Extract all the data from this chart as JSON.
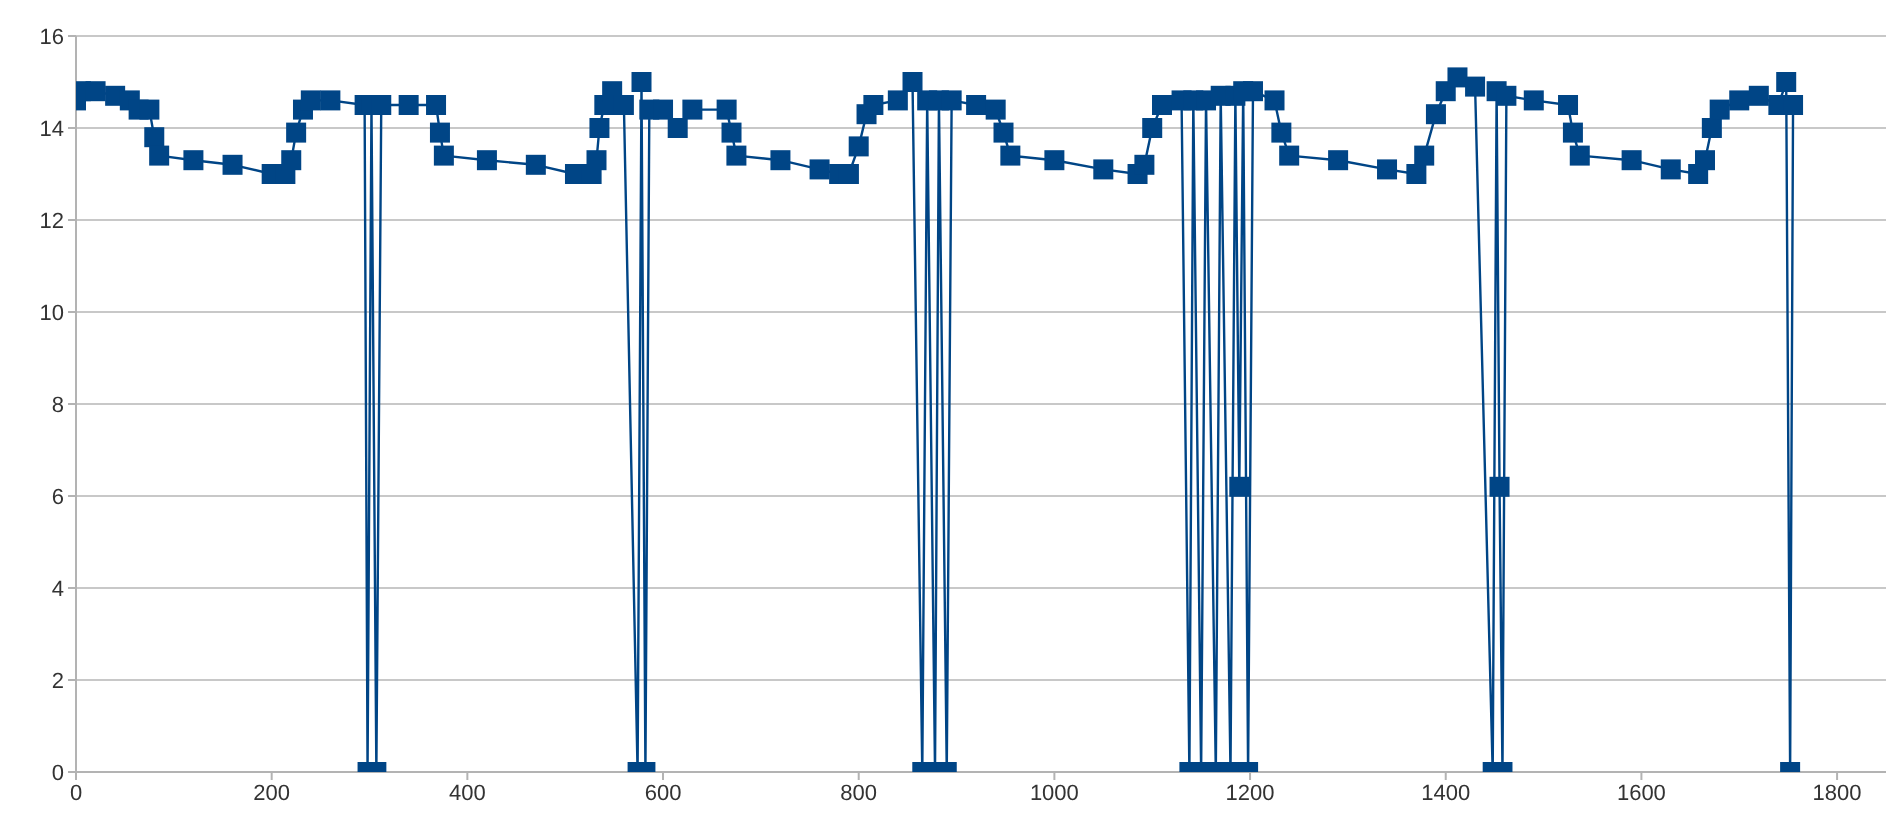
{
  "chart_data": {
    "type": "line",
    "x": [
      0,
      5,
      20,
      40,
      55,
      64,
      75,
      80,
      85,
      120,
      160,
      200,
      214,
      220,
      225,
      232,
      240,
      260,
      295,
      298,
      302,
      307,
      312,
      340,
      368,
      372,
      376,
      420,
      470,
      510,
      527,
      532,
      535,
      540,
      548,
      560,
      574,
      578,
      582,
      586,
      600,
      615,
      630,
      665,
      670,
      675,
      720,
      760,
      780,
      790,
      800,
      808,
      815,
      840,
      855,
      865,
      870,
      878,
      882,
      890,
      895,
      920,
      940,
      948,
      955,
      1000,
      1050,
      1085,
      1092,
      1100,
      1110,
      1130,
      1138,
      1142,
      1150,
      1155,
      1165,
      1170,
      1180,
      1185,
      1189,
      1193,
      1198,
      1203,
      1225,
      1232,
      1240,
      1290,
      1340,
      1370,
      1378,
      1390,
      1400,
      1412,
      1430,
      1448,
      1452,
      1455,
      1458,
      1462,
      1490,
      1525,
      1530,
      1537,
      1590,
      1630,
      1658,
      1665,
      1672,
      1680,
      1700,
      1720,
      1740,
      1748,
      1752,
      1755
    ],
    "series": [
      {
        "color": "#004586",
        "values": [
          14.6,
          14.8,
          14.8,
          14.7,
          14.6,
          14.4,
          14.4,
          13.8,
          13.4,
          13.3,
          13.2,
          13.0,
          13.0,
          13.3,
          13.9,
          14.4,
          14.6,
          14.6,
          14.5,
          0,
          14.5,
          0,
          14.5,
          14.5,
          14.5,
          13.9,
          13.4,
          13.3,
          13.2,
          13.0,
          13.0,
          13.3,
          14.0,
          14.5,
          14.8,
          14.5,
          0,
          15.0,
          0,
          14.4,
          14.4,
          14.0,
          14.4,
          14.4,
          13.9,
          13.4,
          13.3,
          13.1,
          13.0,
          13.0,
          13.6,
          14.3,
          14.5,
          14.6,
          15.0,
          0,
          14.6,
          0,
          14.6,
          0,
          14.6,
          14.5,
          14.4,
          13.9,
          13.4,
          13.3,
          13.1,
          13.0,
          13.2,
          14.0,
          14.5,
          14.6,
          0,
          14.6,
          0,
          14.6,
          0,
          14.7,
          0,
          14.7,
          6.2,
          14.8,
          0,
          14.8,
          14.6,
          13.9,
          13.4,
          13.3,
          13.1,
          13.0,
          13.4,
          14.3,
          14.8,
          15.1,
          14.9,
          0,
          14.8,
          6.2,
          0,
          14.7,
          14.6,
          14.5,
          13.9,
          13.4,
          13.3,
          13.1,
          13.0,
          13.3,
          14.0,
          14.4,
          14.6,
          14.7,
          14.5,
          15.0,
          0,
          14.5
        ]
      }
    ],
    "xlim": [
      0,
      1850
    ],
    "xticks": [
      0,
      200,
      400,
      600,
      800,
      1000,
      1200,
      1400,
      1600,
      1800
    ],
    "ylim": [
      0,
      16
    ],
    "yticks": [
      0,
      2,
      4,
      6,
      8,
      10,
      12,
      14,
      16
    ],
    "grid": "y",
    "legend": false,
    "marker": "square",
    "line_style": "solid"
  }
}
